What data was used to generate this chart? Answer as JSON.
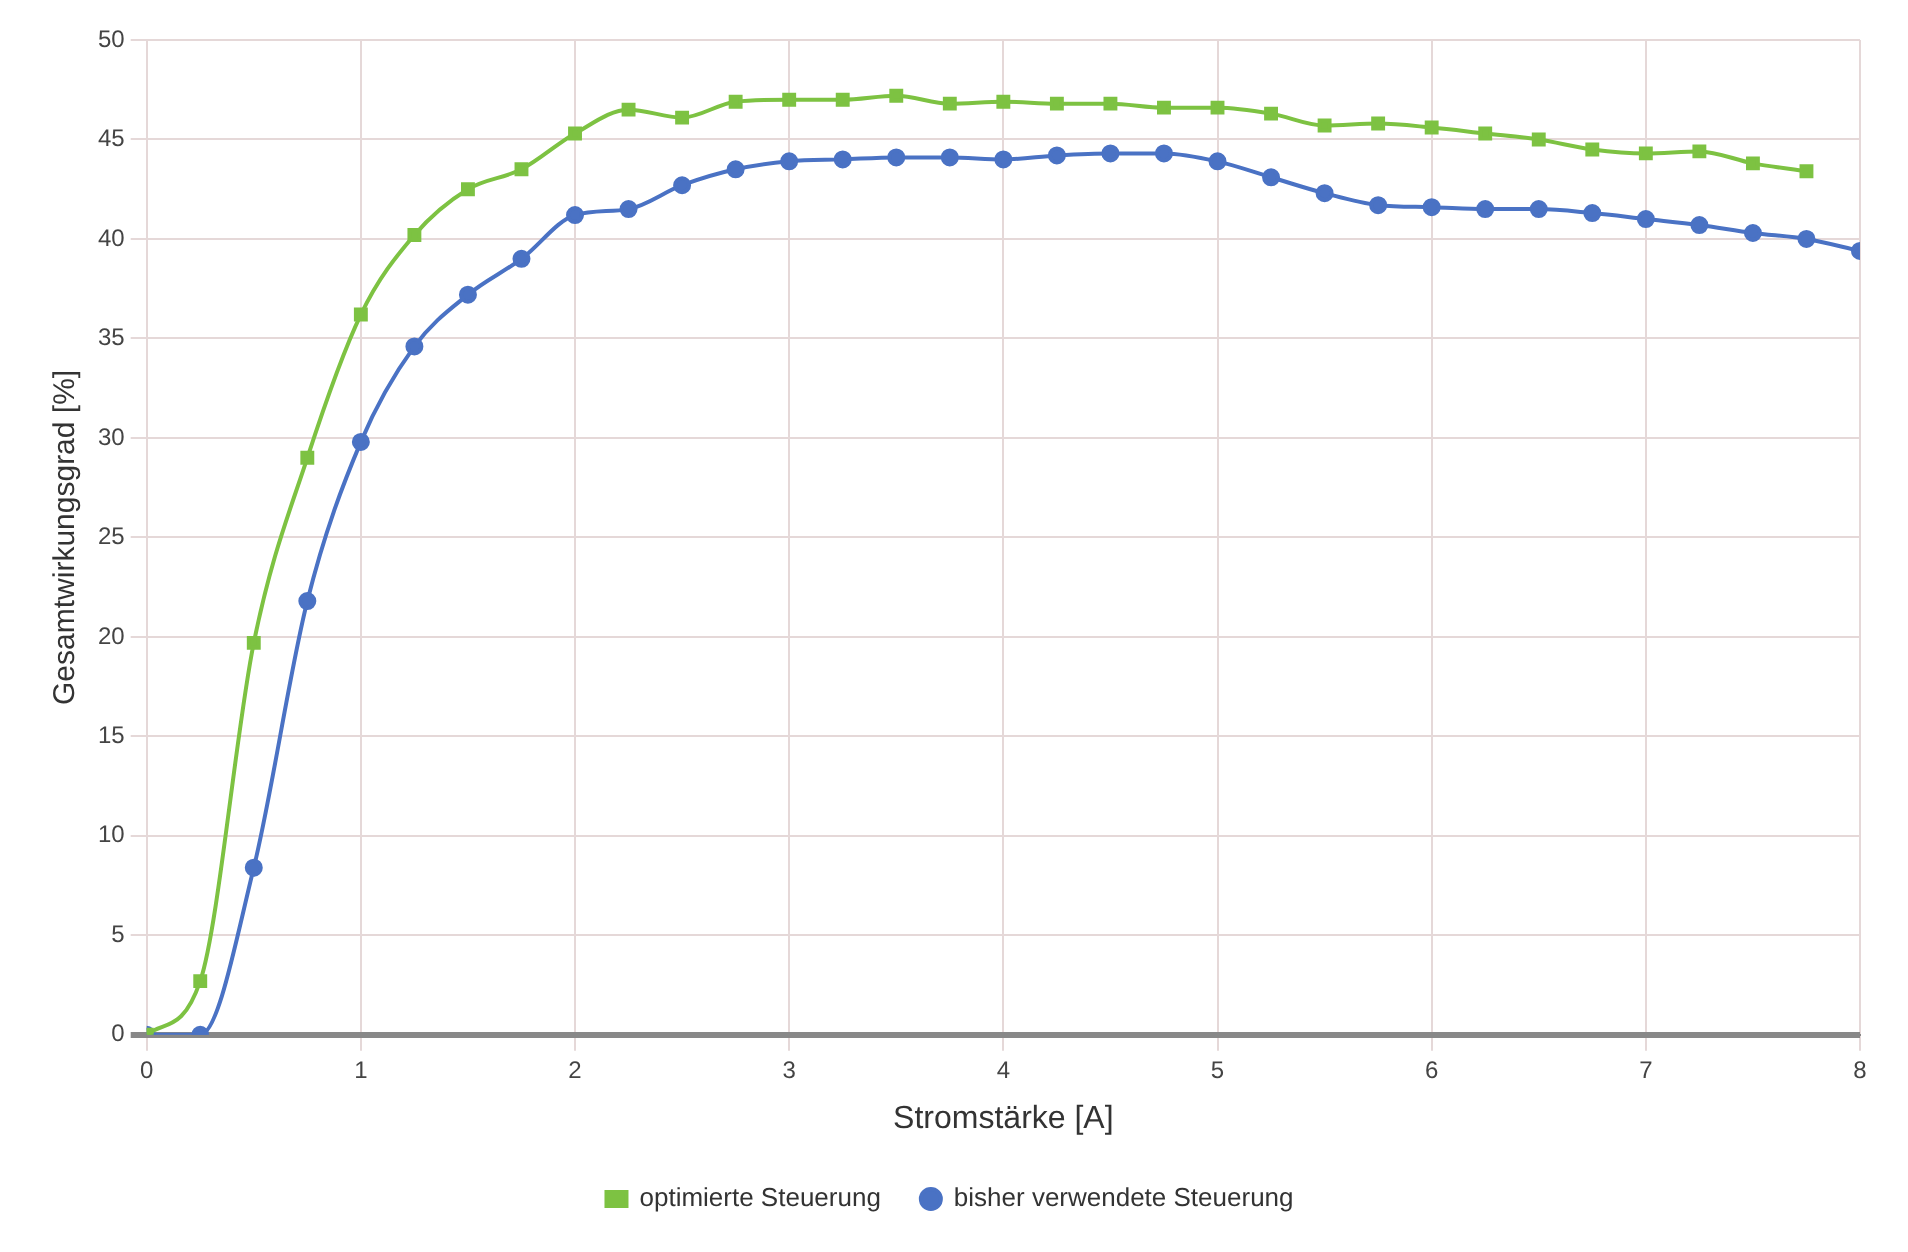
{
  "chart_data": {
    "type": "line",
    "xlabel": "Stromstärke [A]",
    "ylabel": "Gesamtwirkungsgrad [%]",
    "xlim": [
      0,
      8
    ],
    "xticks": [
      0,
      1,
      2,
      3,
      4,
      5,
      6,
      7,
      8
    ],
    "ylim": [
      0,
      50
    ],
    "yticks": [
      0,
      5,
      10,
      15,
      20,
      25,
      30,
      35,
      40,
      45,
      50
    ],
    "grid": true,
    "legend": "bottom",
    "series": [
      {
        "name": "optimierte Steuerung",
        "color": "#7dc242",
        "marker": "square",
        "x": [
          0,
          0.25,
          0.5,
          0.75,
          1,
          1.25,
          1.5,
          1.75,
          2,
          2.25,
          2.5,
          2.75,
          3,
          3.25,
          3.5,
          3.75,
          4,
          4.25,
          4.5,
          4.75,
          5,
          5.25,
          5.5,
          5.75,
          6,
          6.25,
          6.5,
          6.75,
          7,
          7.25,
          7.5,
          7.75
        ],
        "values": [
          0,
          2.7,
          19.7,
          29,
          36.2,
          40.2,
          42.5,
          43.5,
          45.3,
          46.5,
          46.1,
          46.9,
          47,
          47,
          47.2,
          46.8,
          46.9,
          46.8,
          46.8,
          46.6,
          46.6,
          46.3,
          45.7,
          45.8,
          45.6,
          45.3,
          45,
          44.5,
          44.3,
          44.4,
          43.8,
          43.4
        ]
      },
      {
        "name": "bisher verwendete Steuerung",
        "color": "#4a72c4",
        "marker": "circle",
        "x": [
          0,
          0.25,
          0.5,
          0.75,
          1,
          1.25,
          1.5,
          1.75,
          2,
          2.25,
          2.5,
          2.75,
          3,
          3.25,
          3.5,
          3.75,
          4,
          4.25,
          4.5,
          4.75,
          5,
          5.25,
          5.5,
          5.75,
          6,
          6.25,
          6.5,
          6.75,
          7,
          7.25,
          7.5,
          7.75,
          8
        ],
        "values": [
          0,
          0,
          8.4,
          21.8,
          29.8,
          34.6,
          37.2,
          39,
          41.2,
          41.5,
          42.7,
          43.5,
          43.9,
          44,
          44.1,
          44.1,
          44,
          44.2,
          44.3,
          44.3,
          43.9,
          43.1,
          42.3,
          41.7,
          41.6,
          41.5,
          41.5,
          41.3,
          41,
          40.7,
          40.3,
          40,
          39.4
        ]
      }
    ]
  }
}
